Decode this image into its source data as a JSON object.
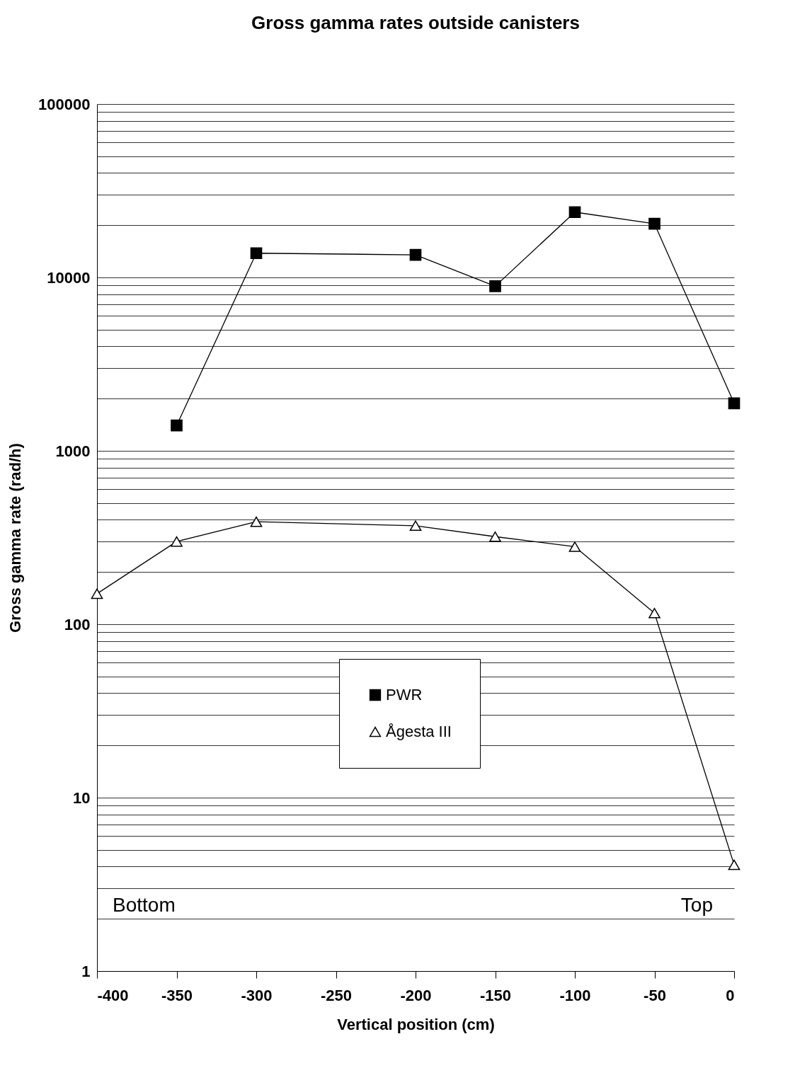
{
  "chart_data": {
    "type": "line",
    "title": "Gross gamma rates outside canisters",
    "xlabel": "Vertical position (cm)",
    "ylabel": "Gross gamma rate (rad/h)",
    "x": [
      -400,
      -350,
      -300,
      -200,
      -150,
      -100,
      -50,
      0
    ],
    "series": [
      {
        "name": "PWR",
        "color": "#000000",
        "marker": "square",
        "values": [
          null,
          1400,
          13800,
          13500,
          8900,
          23800,
          20400,
          1880
        ]
      },
      {
        "name": "Ågesta III",
        "color": "#000000",
        "marker": "triangle",
        "values": [
          150,
          300,
          390,
          370,
          320,
          280,
          116,
          4.1
        ]
      }
    ],
    "xlim": [
      -400,
      0
    ],
    "xticks": [
      -400,
      -350,
      -300,
      -250,
      -200,
      -150,
      -100,
      -50,
      0
    ],
    "ylim": [
      1,
      100000
    ],
    "log": true,
    "yticks": [
      1,
      {
        "value": 2,
        "label": null
      },
      {
        "value": 3,
        "label": null
      },
      {
        "value": 4,
        "label": null
      },
      {
        "value": 5,
        "label": null
      },
      {
        "value": 6,
        "label": null
      },
      {
        "value": 7,
        "label": null
      },
      {
        "value": 8,
        "label": null
      },
      {
        "value": 9,
        "label": null
      },
      10,
      {
        "value": 20,
        "label": null
      },
      {
        "value": 30,
        "label": null
      },
      {
        "value": 40,
        "label": null
      },
      {
        "value": 50,
        "label": null
      },
      {
        "value": 60,
        "label": null
      },
      {
        "value": 70,
        "label": null
      },
      {
        "value": 80,
        "label": null
      },
      {
        "value": 90,
        "label": null
      },
      100,
      {
        "value": 200,
        "label": null
      },
      {
        "value": 300,
        "label": null
      },
      {
        "value": 400,
        "label": null
      },
      {
        "value": 500,
        "label": null
      },
      {
        "value": 600,
        "label": null
      },
      {
        "value": 700,
        "label": null
      },
      {
        "value": 800,
        "label": null
      },
      {
        "value": 900,
        "label": null
      },
      1000,
      {
        "value": 2000,
        "label": null
      },
      {
        "value": 3000,
        "label": null
      },
      {
        "value": 4000,
        "label": null
      },
      {
        "value": 5000,
        "label": null
      },
      {
        "value": 6000,
        "label": null
      },
      {
        "value": 7000,
        "label": null
      },
      {
        "value": 8000,
        "label": null
      },
      {
        "value": 9000,
        "label": null
      },
      10000,
      {
        "value": 20000,
        "label": null
      },
      {
        "value": 30000,
        "label": null
      },
      {
        "value": 40000,
        "label": null
      },
      {
        "value": 50000,
        "label": null
      },
      {
        "value": 60000,
        "label": null
      },
      {
        "value": 70000,
        "label": null
      },
      {
        "value": 80000,
        "label": null
      },
      {
        "value": 90000,
        "label": null
      },
      100000
    ],
    "grid": "y",
    "legend": "center",
    "annotations": [
      "Bottom",
      "Top"
    ]
  }
}
